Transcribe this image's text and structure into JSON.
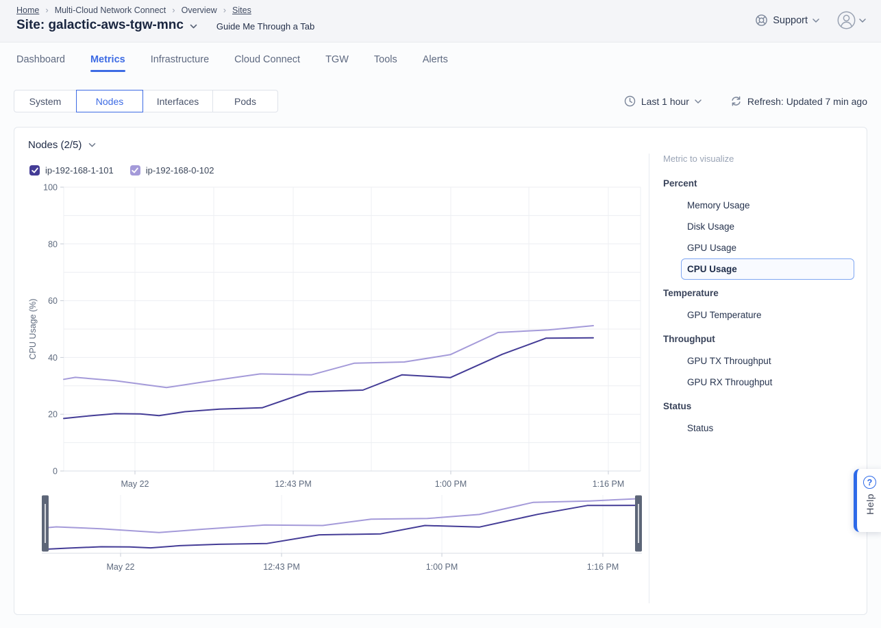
{
  "breadcrumb": {
    "separator": "›",
    "items": [
      {
        "label": "Home",
        "link": true
      },
      {
        "label": "Multi-Cloud Network Connect",
        "link": false
      },
      {
        "label": "Overview",
        "link": false
      },
      {
        "label": "Sites",
        "link": true
      }
    ]
  },
  "header": {
    "site_title": "Site: galactic-aws-tgw-mnc",
    "guide_label": "Guide Me Through a Tab",
    "support_label": "Support"
  },
  "tabs": {
    "active": "Metrics",
    "items": [
      "Dashboard",
      "Metrics",
      "Infrastructure",
      "Cloud Connect",
      "TGW",
      "Tools",
      "Alerts"
    ]
  },
  "subtabs": {
    "active": "Nodes",
    "items": [
      "System",
      "Nodes",
      "Interfaces",
      "Pods"
    ]
  },
  "time_controls": {
    "range_label": "Last 1 hour",
    "refresh_label": "Refresh: Updated 7 min ago"
  },
  "panel": {
    "title": "Nodes (2/5)"
  },
  "legend": [
    {
      "label": "ip-192-168-1-101",
      "color": "#443C96",
      "checked": true
    },
    {
      "label": "ip-192-168-0-102",
      "color": "#A49AD9",
      "checked": true
    }
  ],
  "metric_sidebar": {
    "title": "Metric to visualize",
    "selected": "CPU Usage",
    "groups": [
      {
        "heading": "Percent",
        "items": [
          "Memory Usage",
          "Disk Usage",
          "GPU Usage",
          "CPU Usage"
        ]
      },
      {
        "heading": "Temperature",
        "items": [
          "GPU Temperature"
        ]
      },
      {
        "heading": "Throughput",
        "items": [
          "GPU TX Throughput",
          "GPU RX Throughput"
        ]
      },
      {
        "heading": "Status",
        "items": [
          "Status"
        ]
      }
    ]
  },
  "help": {
    "label": "Help"
  },
  "colors": {
    "accent_blue": "#3D6BE4",
    "series_dark": "#443C96",
    "series_light": "#A49AD9",
    "grid": "#ECEEF2",
    "axis_text": "#5E6A7E"
  },
  "chart_data": {
    "type": "line",
    "title": "",
    "xlabel": "",
    "ylabel": "CPU Usage (%)",
    "ylim": [
      0,
      100
    ],
    "y_ticks": [
      0,
      20,
      40,
      60,
      80,
      100
    ],
    "x_tick_labels": [
      "May 22",
      "12:43 PM",
      "1:00 PM",
      "1:16 PM"
    ],
    "grid": true,
    "legend_position": "top-left",
    "navigator": true,
    "series": [
      {
        "name": "ip-192-168-1-101",
        "color": "#443C96",
        "points": [
          [
            0,
            18.5
          ],
          [
            0.041,
            19.3
          ],
          [
            0.097,
            20.2
          ],
          [
            0.145,
            20.1
          ],
          [
            0.18,
            19.5
          ],
          [
            0.229,
            20.9
          ],
          [
            0.294,
            21.8
          ],
          [
            0.375,
            22.3
          ],
          [
            0.462,
            27.9
          ],
          [
            0.565,
            28.5
          ],
          [
            0.639,
            33.9
          ],
          [
            0.73,
            32.9
          ],
          [
            0.828,
            41.1
          ],
          [
            0.911,
            46.8
          ],
          [
            1,
            46.9
          ]
        ]
      },
      {
        "name": "ip-192-168-0-102",
        "color": "#A49AD9",
        "points": [
          [
            0,
            32.3
          ],
          [
            0.022,
            33.0
          ],
          [
            0.097,
            31.8
          ],
          [
            0.194,
            29.4
          ],
          [
            0.268,
            31.5
          ],
          [
            0.371,
            34.2
          ],
          [
            0.468,
            33.9
          ],
          [
            0.549,
            38.0
          ],
          [
            0.643,
            38.4
          ],
          [
            0.73,
            41.0
          ],
          [
            0.82,
            48.8
          ],
          [
            0.915,
            49.7
          ],
          [
            1,
            51.2
          ]
        ]
      }
    ]
  }
}
